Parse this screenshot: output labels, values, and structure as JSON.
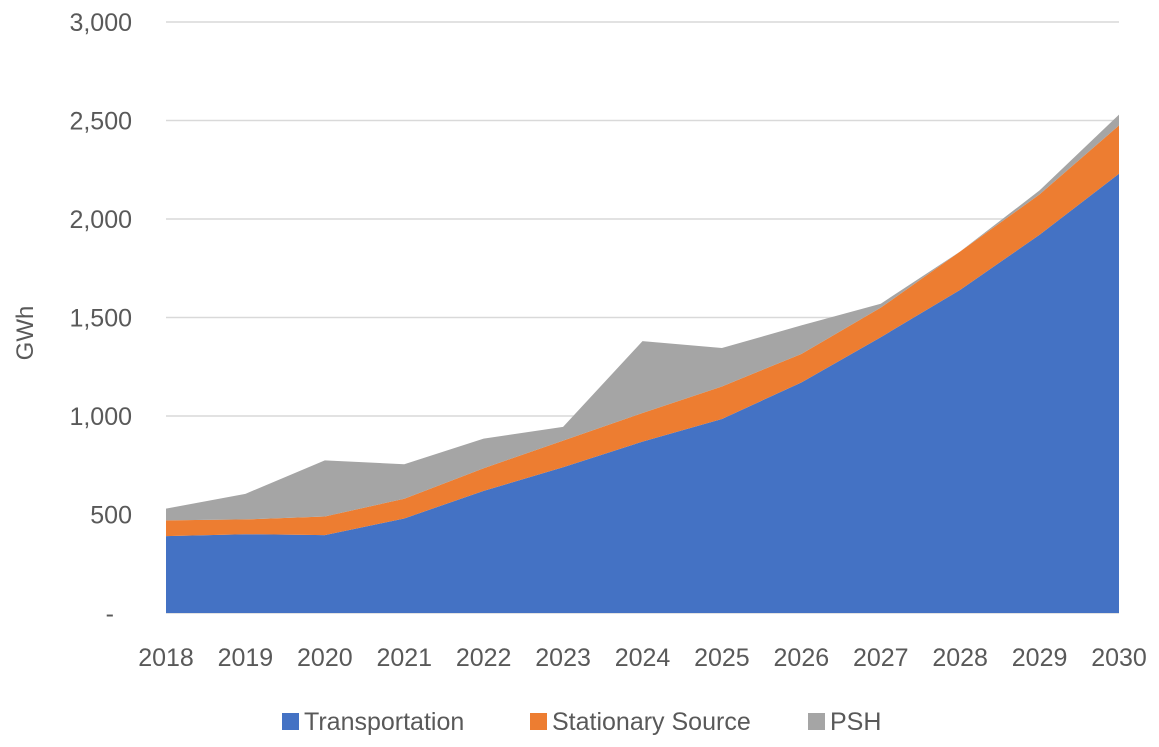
{
  "chart_data": {
    "type": "area",
    "stacked": true,
    "ylabel": "GWh",
    "xlabel": "",
    "title": "",
    "ylim": [
      0,
      3000
    ],
    "y_ticks": [
      0,
      500,
      1000,
      1500,
      2000,
      2500,
      3000
    ],
    "y_tick_labels": [
      "-",
      "500",
      "1,000",
      "1,500",
      "2,000",
      "2,500",
      "3,000"
    ],
    "categories": [
      "2018",
      "2019",
      "2020",
      "2021",
      "2022",
      "2023",
      "2024",
      "2025",
      "2026",
      "2027",
      "2028",
      "2029",
      "2030"
    ],
    "grid": true,
    "legend_position": "bottom",
    "series": [
      {
        "name": "Transportation",
        "color": "#4472C4",
        "values": [
          390,
          400,
          395,
          480,
          620,
          740,
          870,
          985,
          1170,
          1400,
          1640,
          1920,
          2230
        ]
      },
      {
        "name": "Stationary Source",
        "color": "#ED7D31",
        "values": [
          80,
          75,
          95,
          100,
          115,
          135,
          145,
          165,
          145,
          150,
          195,
          205,
          245
        ]
      },
      {
        "name": "PSH",
        "color": "#A5A5A5",
        "values": [
          60,
          130,
          285,
          175,
          150,
          70,
          365,
          195,
          145,
          20,
          0,
          20,
          55
        ]
      }
    ]
  }
}
